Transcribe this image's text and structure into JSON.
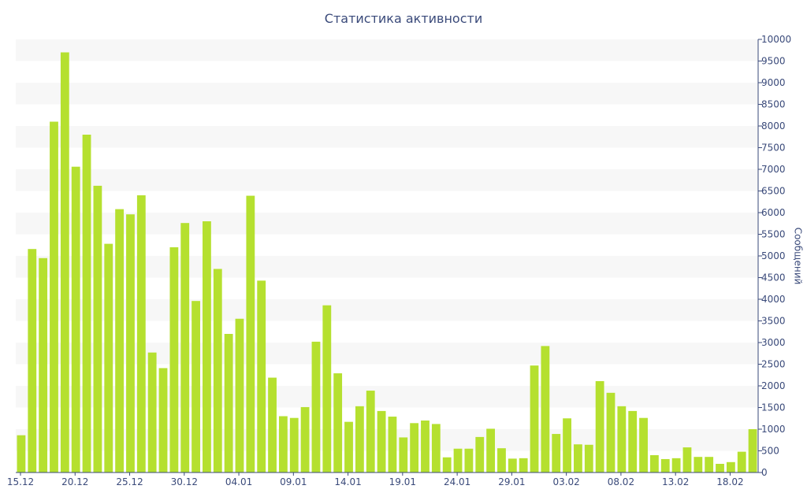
{
  "chart_data": {
    "type": "bar",
    "title": "Статистика активности",
    "ylabel": "Сообщений",
    "xlabel": "",
    "ylim": [
      0,
      10000
    ],
    "y_ticks": [
      0,
      500,
      1000,
      1500,
      2000,
      2500,
      3000,
      3500,
      4000,
      4500,
      5000,
      5500,
      6000,
      6500,
      7000,
      7500,
      8000,
      8500,
      9000,
      9500,
      10000
    ],
    "y_axis_side": "right",
    "x_tick_labels": [
      "15.12",
      "20.12",
      "25.12",
      "30.12",
      "04.01",
      "09.01",
      "14.01",
      "19.01",
      "24.01",
      "29.01",
      "03.02",
      "08.02",
      "13.02",
      "18.02"
    ],
    "grid": "alternating horizontal bands",
    "legend": "none",
    "bar_color": "#b5e02f",
    "band_color": "#f7f7f7",
    "text_color": "#3a4a7a",
    "values": [
      860,
      5160,
      4950,
      8100,
      9700,
      7060,
      7800,
      6620,
      5280,
      6080,
      5960,
      6400,
      2770,
      2410,
      5200,
      5760,
      3960,
      5800,
      4700,
      3200,
      3550,
      6390,
      4430,
      2190,
      1300,
      1260,
      1510,
      3020,
      3860,
      2290,
      1170,
      1530,
      1890,
      1420,
      1290,
      810,
      1140,
      1200,
      1120,
      350,
      550,
      550,
      820,
      1010,
      560,
      320,
      330,
      2470,
      2920,
      890,
      1250,
      650,
      640,
      2110,
      1840,
      1530,
      1420,
      1260,
      400,
      310,
      330,
      580,
      360,
      360,
      200,
      240,
      480,
      1000
    ]
  }
}
